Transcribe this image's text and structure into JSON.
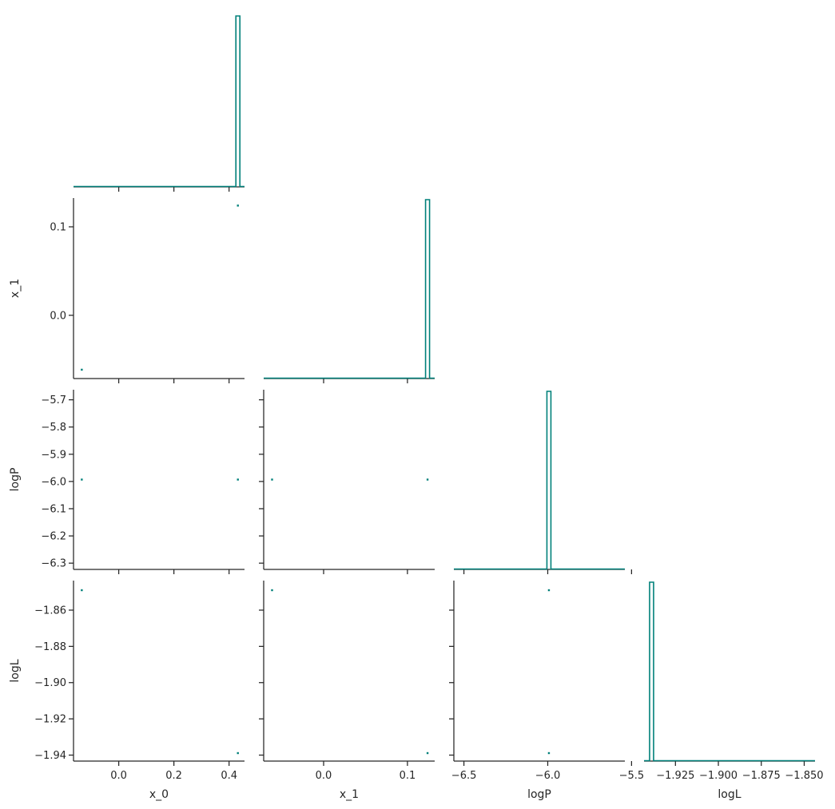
{
  "chart_data": {
    "type": "scatter",
    "subtype": "corner-plot",
    "color": "#00807a",
    "parameters": [
      {
        "name": "x_0",
        "ticks": [
          0.0,
          0.2,
          0.4
        ],
        "tick_labels": [
          "0.0",
          "0.2",
          "0.4"
        ],
        "range": [
          -0.164,
          0.456
        ]
      },
      {
        "name": "x_1",
        "ticks": [
          0.0,
          0.1
        ],
        "tick_labels": [
          "0.0",
          "0.1"
        ],
        "range": [
          -0.0715,
          0.1325
        ]
      },
      {
        "name": "logP",
        "ticks": [
          -6.5,
          -6.0,
          -5.5
        ],
        "tick_labels": [
          "−6.5",
          "−6.0",
          "−5.5"
        ],
        "ticks_y": [
          -6.3,
          -6.2,
          -6.1,
          -6.0,
          -5.9,
          -5.8,
          -5.7
        ],
        "tick_labels_y": [
          "−6.3",
          "−6.2",
          "−6.1",
          "−6.0",
          "−5.9",
          "−5.8",
          "−5.7"
        ],
        "range": [
          -6.56,
          -5.54
        ],
        "range_y": [
          -6.323,
          -5.663
        ]
      },
      {
        "name": "logL",
        "ticks": [
          -1.925,
          -1.9,
          -1.875,
          -1.85
        ],
        "tick_labels": [
          "−1.925",
          "−1.900",
          "−1.875",
          "−1.850"
        ],
        "ticks_y": [
          -1.94,
          -1.92,
          -1.9,
          -1.88,
          -1.86
        ],
        "tick_labels_y": [
          "−1.94",
          "−1.92",
          "−1.90",
          "−1.88",
          "−1.86"
        ],
        "range": [
          -1.9433,
          -1.8437
        ],
        "range_y": [
          -1.9433,
          -1.8437
        ]
      }
    ],
    "samples": [
      {
        "x_0": -0.134,
        "x_1": -0.0615,
        "logP": -5.993,
        "logL": -1.849
      },
      {
        "x_0": 0.432,
        "x_1": 0.124,
        "logP": -5.993,
        "logL": -1.9389
      }
    ],
    "histograms": [
      {
        "param": "x_0",
        "peak_value": 0.432
      },
      {
        "param": "x_1",
        "peak_value": 0.124
      },
      {
        "param": "logP",
        "peak_value": -5.993
      },
      {
        "param": "logL",
        "peak_value": -1.9389
      }
    ],
    "grid": false
  }
}
